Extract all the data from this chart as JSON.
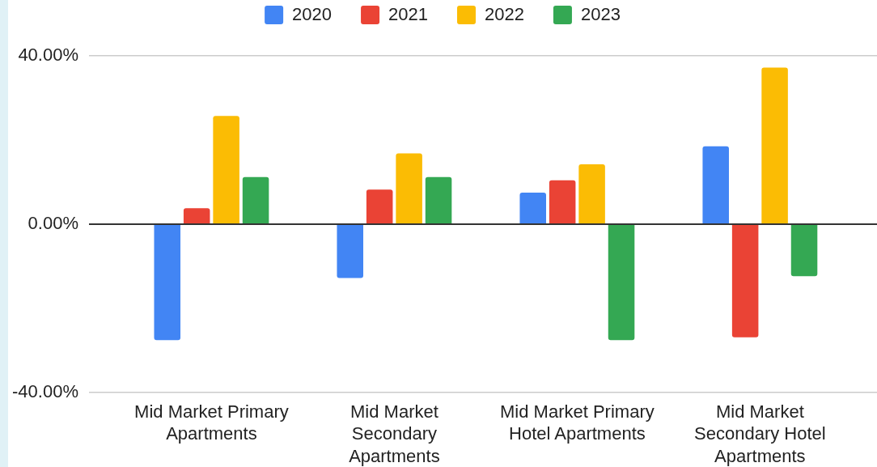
{
  "chart_data": {
    "type": "bar",
    "categories": [
      "Mid Market Primary Apartments",
      "Mid Market Secondary Apartments",
      "Mid Market Primary Hotel Apartments",
      "Mid Market Secondary Hotel Apartments"
    ],
    "series": [
      {
        "name": "2020",
        "color": "#4285f4",
        "values": [
          -27.6,
          -12.8,
          7.5,
          18.5
        ]
      },
      {
        "name": "2021",
        "color": "#ea4335",
        "values": [
          3.8,
          8.2,
          10.4,
          -26.9
        ]
      },
      {
        "name": "2022",
        "color": "#fbbc04",
        "values": [
          25.7,
          16.8,
          14.2,
          37.2
        ]
      },
      {
        "name": "2023",
        "color": "#34a853",
        "values": [
          11.2,
          11.2,
          -27.6,
          -12.4
        ]
      }
    ],
    "ylim": [
      -40,
      40
    ],
    "yticks": [
      {
        "value": -40,
        "label": "-40.00%"
      },
      {
        "value": 0,
        "label": "0.00%"
      },
      {
        "value": 40,
        "label": "40.00%"
      }
    ],
    "grid": "y",
    "legend": "top"
  }
}
